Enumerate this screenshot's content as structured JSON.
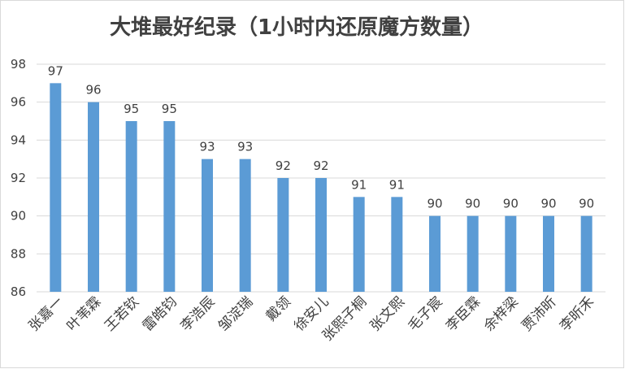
{
  "chart_data": {
    "type": "bar",
    "title": "大堆最好纪录（1小时内还原魔方数量）",
    "xlabel": "",
    "ylabel": "",
    "categories": [
      "张嘉一",
      "叶苇霖",
      "王若钦",
      "雷皓钧",
      "李浩辰",
      "邹淀瑞",
      "戴领",
      "徐安儿",
      "张熙子桐",
      "张文熙",
      "毛子宸",
      "李臣霖",
      "余梓梁",
      "贾沛昕",
      "李昕禾"
    ],
    "values": [
      97,
      96,
      95,
      95,
      93,
      93,
      92,
      92,
      91,
      91,
      90,
      90,
      90,
      90,
      90
    ],
    "ylim": [
      86,
      98
    ],
    "yticks": [
      86,
      88,
      90,
      92,
      94,
      96,
      98
    ],
    "grid": true,
    "legend": "none",
    "bar_color": "#5b9bd5",
    "data_labels": true
  }
}
